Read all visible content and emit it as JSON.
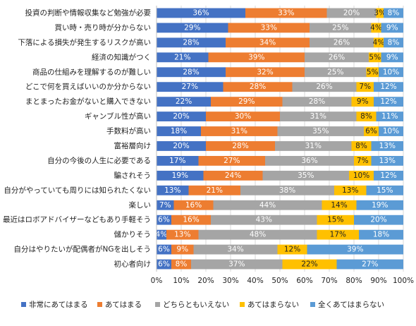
{
  "chart_data": {
    "type": "stacked-bar-horizontal",
    "categories": [
      "投資の判断や情報収集など勉強が必要",
      "買い時・売り時が分からない",
      "下落による損失が発生するリスクが高い",
      "経済の知識がつく",
      "商品の仕組みを理解するのが難しい",
      "どこで何を買えばいいのか分からない",
      "まとまったお金がないと購入できない",
      "ギャンブル性が高い",
      "手数料が高い",
      "富裕層向け",
      "自分の今後の人生に必要である",
      "騙されそう",
      "自分がやっていても周りには知られたくない",
      "楽しい",
      "最近はロボアドバイザーなどもあり手軽そう",
      "儲かりそう",
      "自分はやりたいが配偶者がNGを出しそう",
      "初心者向け"
    ],
    "series": [
      {
        "name": "非常にあてはまる",
        "color": "#4472c4",
        "values": [
          36,
          29,
          28,
          21,
          28,
          27,
          22,
          20,
          18,
          20,
          17,
          19,
          13,
          7,
          6,
          4,
          6,
          6
        ],
        "value_labels": [
          "36%",
          "29%",
          "28%",
          "21%",
          "28%",
          "27%",
          "22%",
          "20%",
          "18%",
          "20%",
          "17%",
          "19%",
          "13%",
          "7%",
          "6%",
          "4%",
          "6%",
          "6%"
        ]
      },
      {
        "name": "あてはまる",
        "color": "#ed7d31",
        "values": [
          33,
          33,
          34,
          39,
          32,
          28,
          29,
          30,
          31,
          28,
          27,
          24,
          21,
          16,
          16,
          13,
          9,
          8
        ],
        "value_labels": [
          "33%",
          "33%",
          "34%",
          "39%",
          "32%",
          "28%",
          "29%",
          "30%",
          "31%",
          "28%",
          "27%",
          "24%",
          "21%",
          "16%",
          "16%",
          "13%",
          "9%",
          "8%"
        ]
      },
      {
        "name": "どちらともいえない",
        "color": "#a5a5a5",
        "values": [
          20,
          25,
          26,
          26,
          25,
          26,
          28,
          31,
          35,
          31,
          36,
          35,
          38,
          44,
          43,
          48,
          34,
          37
        ],
        "value_labels": [
          "20%",
          "25%",
          "26%",
          "26%",
          "25%",
          "26%",
          "28%",
          "31%",
          "35%",
          "31%",
          "36%",
          "35%",
          "38%",
          "44%",
          "43%",
          "48%",
          "34%",
          "37%"
        ]
      },
      {
        "name": "あてはまらない",
        "color": "#ffc000",
        "values": [
          3,
          4,
          4,
          5,
          5,
          7,
          9,
          8,
          6,
          8,
          7,
          10,
          13,
          14,
          15,
          17,
          12,
          22
        ],
        "value_labels": [
          "3%",
          "4%",
          "4%",
          "5%",
          "5%",
          "7%",
          "9%",
          "8%",
          "6%",
          "8%",
          "7%",
          "10%",
          "13%",
          "14%",
          "15%",
          "17%",
          "12%",
          "22%"
        ]
      },
      {
        "name": "全くあてはまらない",
        "color": "#5b9bd5",
        "values": [
          8,
          9,
          8,
          9,
          10,
          12,
          12,
          11,
          10,
          13,
          13,
          12,
          15,
          19,
          20,
          18,
          39,
          27
        ],
        "value_labels": [
          "8%",
          "9%",
          "8%",
          "9%",
          "10%",
          "12%",
          "12%",
          "11%",
          "10%",
          "13%",
          "13%",
          "12%",
          "15%",
          "19%",
          "20%",
          "18%",
          "39%",
          "27%"
        ]
      }
    ],
    "xlim": [
      0,
      100
    ],
    "xticks": [
      {
        "value": 0,
        "label": "0%"
      },
      {
        "value": 10,
        "label": "10%"
      },
      {
        "value": 20,
        "label": "20%"
      },
      {
        "value": 30,
        "label": "30%"
      },
      {
        "value": 40,
        "label": "40%"
      },
      {
        "value": 50,
        "label": "50%"
      },
      {
        "value": 60,
        "label": "60%"
      },
      {
        "value": 70,
        "label": "70%"
      },
      {
        "value": 80,
        "label": "80%"
      },
      {
        "value": 90,
        "label": "90%"
      },
      {
        "value": 100,
        "label": "100%"
      }
    ],
    "grid": true,
    "legend": "bottom"
  }
}
